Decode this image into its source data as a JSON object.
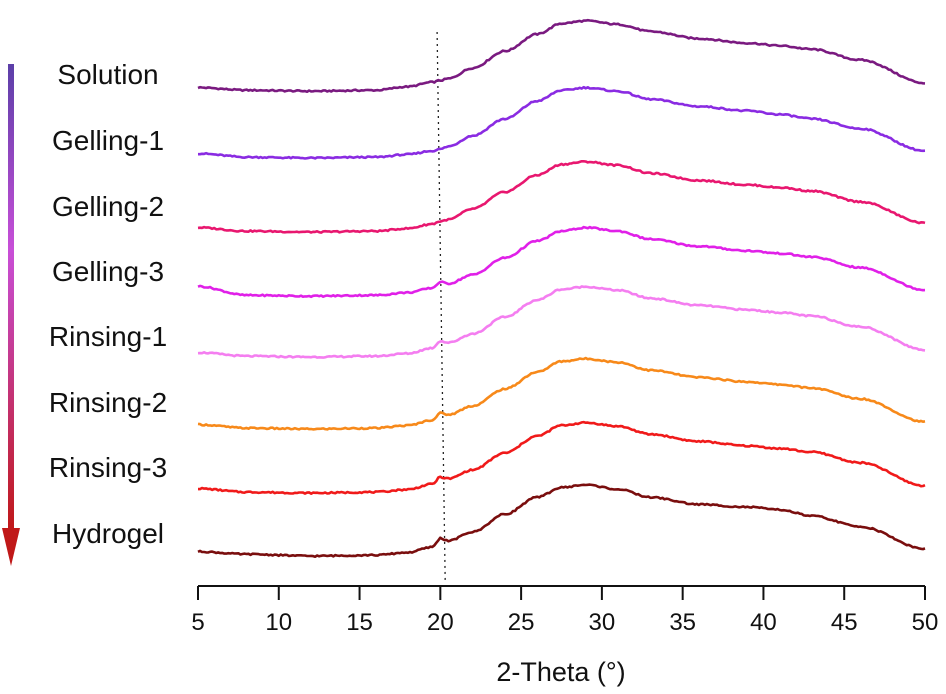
{
  "chart_data": {
    "type": "line",
    "title": "",
    "xlabel": "2-Theta (°)",
    "ylabel": "",
    "xlim": [
      5,
      50
    ],
    "xticks": [
      "5",
      "10",
      "15",
      "20",
      "25",
      "30",
      "35",
      "40",
      "45",
      "50"
    ],
    "grid": false,
    "stacked_offset": true,
    "arrow": {
      "direction": "down",
      "color_top": "#5b3fa8",
      "color_bottom": "#c01818"
    },
    "reference_line": {
      "label": "",
      "x_top": 19.8,
      "x_bottom": 20.3,
      "style": "dotted"
    },
    "x": [
      5,
      8,
      12,
      16,
      18,
      19.5,
      20,
      20.5,
      22,
      24,
      26,
      27.5,
      29,
      31,
      33,
      36,
      39,
      41,
      43,
      46,
      50
    ],
    "series": [
      {
        "name": "Solution",
        "color": "#7a1a80",
        "step": false,
        "values": [
          5,
          2,
          1,
          2,
          6,
          11,
          13,
          15,
          27,
          46,
          65,
          77,
          80,
          76,
          68,
          60,
          55,
          52,
          48,
          36,
          10
        ]
      },
      {
        "name": "Gelling-1",
        "color": "#8a2be2",
        "step": false,
        "values": [
          5,
          1,
          0,
          1,
          4,
          8,
          10,
          13,
          25,
          44,
          64,
          76,
          79,
          75,
          66,
          58,
          53,
          49,
          44,
          33,
          8
        ]
      },
      {
        "name": "Gelling-2",
        "color": "#e8176f",
        "step": false,
        "values": [
          5,
          1,
          0,
          1,
          4,
          9,
          12,
          14,
          26,
          45,
          64,
          76,
          79,
          75,
          66,
          58,
          53,
          50,
          46,
          34,
          10
        ]
      },
      {
        "name": "Gelling-3",
        "color": "#e020e8",
        "step": true,
        "values": [
          12,
          2,
          1,
          2,
          5,
          10,
          13,
          15,
          25,
          44,
          63,
          74,
          78,
          74,
          65,
          57,
          52,
          49,
          45,
          33,
          8
        ]
      },
      {
        "name": "Rinsing-1",
        "color": "#f47ef0",
        "step": true,
        "values": [
          5,
          1,
          0,
          1,
          4,
          10,
          14,
          16,
          26,
          45,
          64,
          76,
          79,
          75,
          66,
          58,
          53,
          50,
          46,
          34,
          8
        ]
      },
      {
        "name": "Rinsing-2",
        "color": "#f7891a",
        "step": true,
        "values": [
          5,
          1,
          0,
          1,
          4,
          10,
          14,
          16,
          26,
          45,
          64,
          76,
          79,
          75,
          66,
          58,
          53,
          50,
          46,
          34,
          8
        ]
      },
      {
        "name": "Rinsing-3",
        "color": "#f01a1a",
        "step": true,
        "values": [
          5,
          1,
          0,
          1,
          4,
          10,
          14,
          16,
          26,
          45,
          64,
          76,
          79,
          75,
          66,
          58,
          53,
          50,
          46,
          34,
          8
        ]
      },
      {
        "name": "Hydrogel",
        "color": "#7a0e0e",
        "step": true,
        "values": [
          5,
          2,
          0,
          1,
          4,
          10,
          16,
          17,
          27,
          47,
          66,
          77,
          80,
          75,
          66,
          58,
          55,
          52,
          45,
          33,
          8
        ]
      }
    ]
  }
}
